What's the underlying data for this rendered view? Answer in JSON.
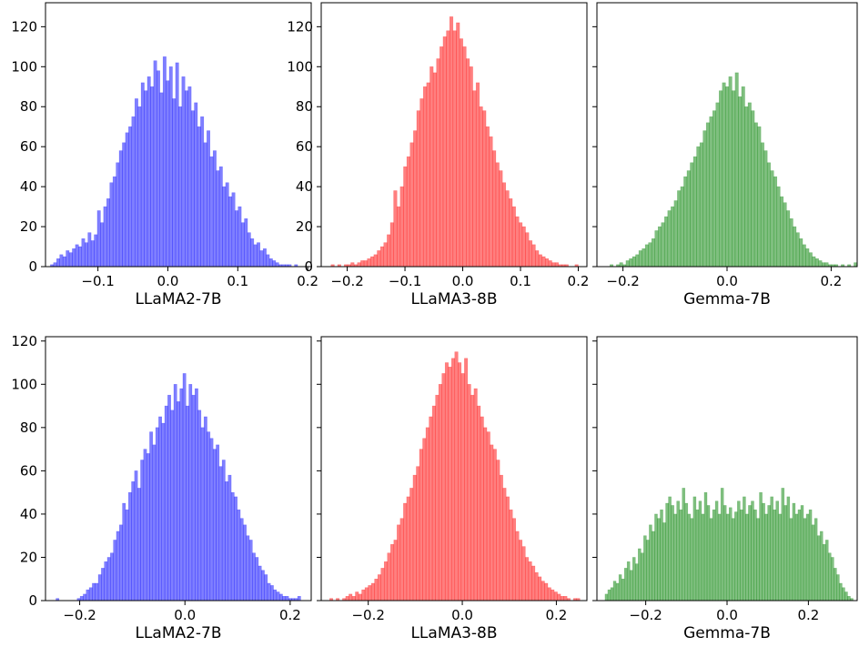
{
  "chart_data": [
    {
      "type": "bar",
      "xlabel": "LLaMA2-7B",
      "color": "#0000ff",
      "alpha": 0.5,
      "xlim": [
        -0.175,
        0.205
      ],
      "ylim": [
        0,
        132
      ],
      "xticks": [
        -0.1,
        0.0,
        0.1,
        0.2
      ],
      "xtick_labels": [
        "−0.1",
        "0.0",
        "0.1",
        "0.2"
      ],
      "yticks": [
        0,
        20,
        40,
        60,
        80,
        100,
        120
      ],
      "ytick_labels": [
        "0",
        "20",
        "40",
        "60",
        "80",
        "100",
        "120"
      ],
      "bin_start": -0.168,
      "bin_end": 0.19,
      "values": [
        1,
        2,
        4,
        6,
        5,
        8,
        7,
        9,
        11,
        10,
        14,
        12,
        17,
        13,
        16,
        28,
        22,
        30,
        34,
        42,
        45,
        52,
        58,
        62,
        67,
        70,
        75,
        84,
        80,
        92,
        88,
        95,
        90,
        103,
        98,
        87,
        105,
        93,
        100,
        84,
        102,
        80,
        95,
        88,
        90,
        78,
        82,
        70,
        75,
        62,
        68,
        55,
        58,
        48,
        50,
        40,
        42,
        35,
        37,
        28,
        30,
        22,
        24,
        17,
        14,
        11,
        12,
        8,
        9,
        6,
        4,
        3,
        2,
        1,
        1,
        1,
        1,
        0,
        1,
        0
      ]
    },
    {
      "type": "bar",
      "xlabel": "LLaMA3-8B",
      "color": "#ff0000",
      "alpha": 0.5,
      "xlim": [
        -0.245,
        0.215
      ],
      "ylim": [
        0,
        132
      ],
      "xticks": [
        -0.2,
        -0.1,
        0.0,
        0.1,
        0.2
      ],
      "xtick_labels": [
        "−0.2",
        "−0.1",
        "0.0",
        "0.1",
        "0.2"
      ],
      "yticks": [
        0,
        20,
        40,
        60,
        80,
        100,
        120
      ],
      "ytick_labels": [
        "0",
        "20",
        "40",
        "60",
        "80",
        "100",
        "120"
      ],
      "bin_start": -0.228,
      "bin_end": 0.2,
      "values": [
        1,
        0,
        1,
        0,
        1,
        1,
        2,
        1,
        2,
        3,
        3,
        4,
        5,
        6,
        8,
        10,
        12,
        16,
        22,
        38,
        30,
        40,
        50,
        55,
        62,
        68,
        78,
        84,
        90,
        92,
        100,
        97,
        104,
        110,
        115,
        118,
        125,
        118,
        122,
        114,
        110,
        104,
        100,
        88,
        92,
        80,
        78,
        70,
        65,
        58,
        52,
        48,
        42,
        38,
        34,
        30,
        25,
        22,
        20,
        17,
        13,
        11,
        8,
        6,
        5,
        4,
        3,
        2,
        2,
        1,
        1,
        1,
        0,
        0,
        1
      ]
    },
    {
      "type": "bar",
      "xlabel": "Gemma-7B",
      "color": "#008000",
      "alpha": 0.5,
      "xlim": [
        -0.25,
        0.25
      ],
      "ylim": [
        0,
        132
      ],
      "xticks": [
        -0.2,
        0.0,
        0.2
      ],
      "xtick_labels": [
        "−0.2",
        "0.0",
        "0.2"
      ],
      "yticks": [
        0,
        20,
        40,
        60,
        80,
        100,
        120
      ],
      "ytick_labels": [
        "",
        "",
        "",
        "",
        "",
        "",
        ""
      ],
      "bin_start": -0.225,
      "bin_end": 0.25,
      "values": [
        1,
        0,
        1,
        2,
        1,
        3,
        4,
        5,
        6,
        8,
        9,
        11,
        12,
        14,
        18,
        20,
        22,
        25,
        28,
        30,
        33,
        38,
        40,
        45,
        48,
        52,
        55,
        60,
        62,
        68,
        72,
        75,
        78,
        82,
        88,
        92,
        90,
        95,
        88,
        97,
        85,
        90,
        80,
        82,
        78,
        72,
        70,
        62,
        58,
        52,
        48,
        45,
        40,
        35,
        32,
        28,
        24,
        20,
        17,
        14,
        11,
        9,
        7,
        5,
        4,
        3,
        2,
        2,
        1,
        1,
        1,
        0,
        1,
        0,
        1,
        0,
        2
      ]
    },
    {
      "type": "bar",
      "xlabel": "LLaMA2-7B",
      "color": "#0000ff",
      "alpha": 0.5,
      "xlim": [
        -0.265,
        0.24
      ],
      "ylim": [
        0,
        122
      ],
      "xticks": [
        -0.2,
        0.0,
        0.2
      ],
      "xtick_labels": [
        "−0.2",
        "0.0",
        "0.2"
      ],
      "yticks": [
        0,
        20,
        40,
        60,
        80,
        100,
        120
      ],
      "ytick_labels": [
        "0",
        "20",
        "40",
        "60",
        "80",
        "100",
        "120"
      ],
      "bin_start": -0.245,
      "bin_end": 0.22,
      "values": [
        1,
        0,
        0,
        0,
        0,
        0,
        0,
        1,
        2,
        3,
        5,
        6,
        8,
        8,
        12,
        15,
        18,
        20,
        22,
        28,
        32,
        35,
        45,
        42,
        50,
        55,
        60,
        52,
        65,
        70,
        68,
        78,
        72,
        80,
        85,
        82,
        90,
        95,
        88,
        100,
        92,
        98,
        105,
        90,
        100,
        95,
        98,
        88,
        80,
        85,
        78,
        75,
        70,
        72,
        62,
        65,
        55,
        58,
        50,
        48,
        42,
        38,
        35,
        30,
        28,
        22,
        20,
        16,
        14,
        12,
        8,
        7,
        5,
        4,
        3,
        2,
        2,
        1,
        1,
        1,
        2
      ]
    },
    {
      "type": "bar",
      "xlabel": "LLaMA3-8B",
      "color": "#ff0000",
      "alpha": 0.5,
      "xlim": [
        -0.3,
        0.265
      ],
      "ylim": [
        0,
        122
      ],
      "xticks": [
        -0.2,
        0.0,
        0.2
      ],
      "xtick_labels": [
        "−0.2",
        "0.0",
        "0.2"
      ],
      "yticks": [
        0,
        20,
        40,
        60,
        80,
        100,
        120
      ],
      "ytick_labels": [
        "",
        "",
        "",
        "",
        "",
        "",
        ""
      ],
      "bin_start": -0.282,
      "bin_end": 0.25,
      "values": [
        1,
        0,
        1,
        0,
        1,
        2,
        3,
        2,
        4,
        3,
        5,
        6,
        7,
        8,
        10,
        12,
        15,
        18,
        22,
        26,
        28,
        35,
        38,
        45,
        48,
        52,
        58,
        62,
        70,
        75,
        80,
        85,
        90,
        95,
        100,
        105,
        110,
        108,
        112,
        115,
        110,
        105,
        112,
        100,
        95,
        98,
        90,
        85,
        80,
        78,
        72,
        70,
        65,
        58,
        52,
        48,
        42,
        38,
        32,
        28,
        25,
        20,
        18,
        16,
        13,
        11,
        9,
        8,
        6,
        5,
        4,
        3,
        2,
        2,
        1,
        0,
        1,
        1
      ]
    },
    {
      "type": "bar",
      "xlabel": "Gemma-7B",
      "color": "#008000",
      "alpha": 0.5,
      "xlim": [
        -0.32,
        0.32
      ],
      "ylim": [
        0,
        122
      ],
      "xticks": [
        -0.2,
        0.0,
        0.2
      ],
      "xtick_labels": [
        "−0.2",
        "0.0",
        "0.2"
      ],
      "yticks": [
        0,
        20,
        40,
        60,
        80,
        100,
        120
      ],
      "ytick_labels": [
        "",
        "",
        "",
        "",
        "",
        "",
        ""
      ],
      "bin_start": -0.3,
      "bin_end": 0.31,
      "values": [
        3,
        5,
        6,
        9,
        8,
        12,
        10,
        15,
        18,
        14,
        20,
        17,
        24,
        22,
        30,
        28,
        35,
        32,
        40,
        38,
        42,
        36,
        45,
        48,
        44,
        40,
        46,
        42,
        52,
        45,
        40,
        38,
        48,
        42,
        46,
        40,
        50,
        44,
        38,
        42,
        46,
        40,
        52,
        44,
        40,
        43,
        38,
        41,
        46,
        42,
        48,
        40,
        44,
        46,
        42,
        38,
        50,
        45,
        40,
        44,
        48,
        42,
        46,
        40,
        52,
        44,
        48,
        38,
        45,
        40,
        42,
        44,
        38,
        40,
        42,
        35,
        38,
        30,
        32,
        26,
        28,
        22,
        20,
        15,
        12,
        8,
        6,
        4,
        2,
        1
      ]
    }
  ]
}
